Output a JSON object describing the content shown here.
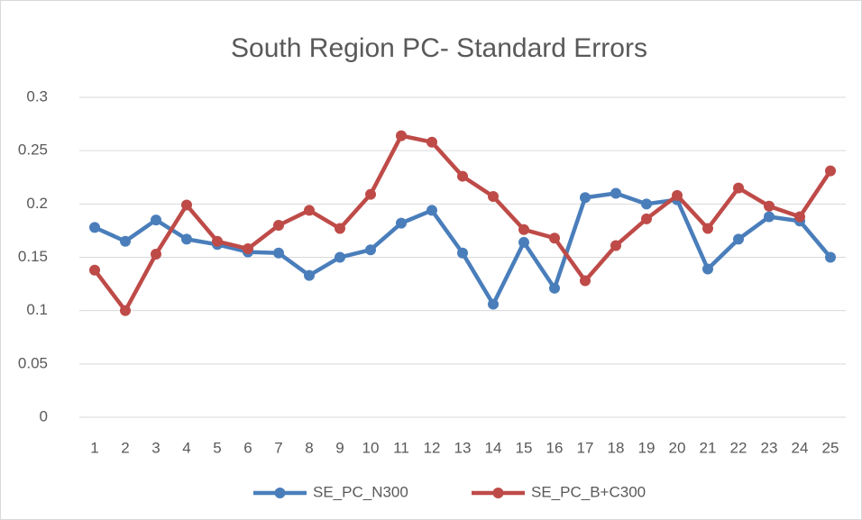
{
  "chart_data": {
    "type": "line",
    "title": "South Region PC- Standard Errors",
    "categories": [
      1,
      2,
      3,
      4,
      5,
      6,
      7,
      8,
      9,
      10,
      11,
      12,
      13,
      14,
      15,
      16,
      17,
      18,
      19,
      20,
      21,
      22,
      23,
      24,
      25
    ],
    "series": [
      {
        "name": "SE_PC_N300",
        "color": "#4a7ebb",
        "values": [
          0.178,
          0.165,
          0.185,
          0.167,
          0.162,
          0.155,
          0.154,
          0.133,
          0.15,
          0.157,
          0.182,
          0.194,
          0.154,
          0.106,
          0.164,
          0.121,
          0.206,
          0.21,
          0.2,
          0.204,
          0.139,
          0.167,
          0.188,
          0.184,
          0.15
        ]
      },
      {
        "name": "SE_PC_B+C300",
        "color": "#be4b48",
        "values": [
          0.138,
          0.1,
          0.153,
          0.199,
          0.165,
          0.158,
          0.18,
          0.194,
          0.177,
          0.209,
          0.264,
          0.258,
          0.226,
          0.207,
          0.176,
          0.168,
          0.128,
          0.161,
          0.186,
          0.208,
          0.177,
          0.215,
          0.198,
          0.188,
          0.231
        ]
      }
    ],
    "ylim": [
      0,
      0.3
    ],
    "yticks": [
      0,
      0.05,
      0.1,
      0.15,
      0.2,
      0.25,
      0.3
    ],
    "grid": true,
    "legend": "bottom"
  }
}
